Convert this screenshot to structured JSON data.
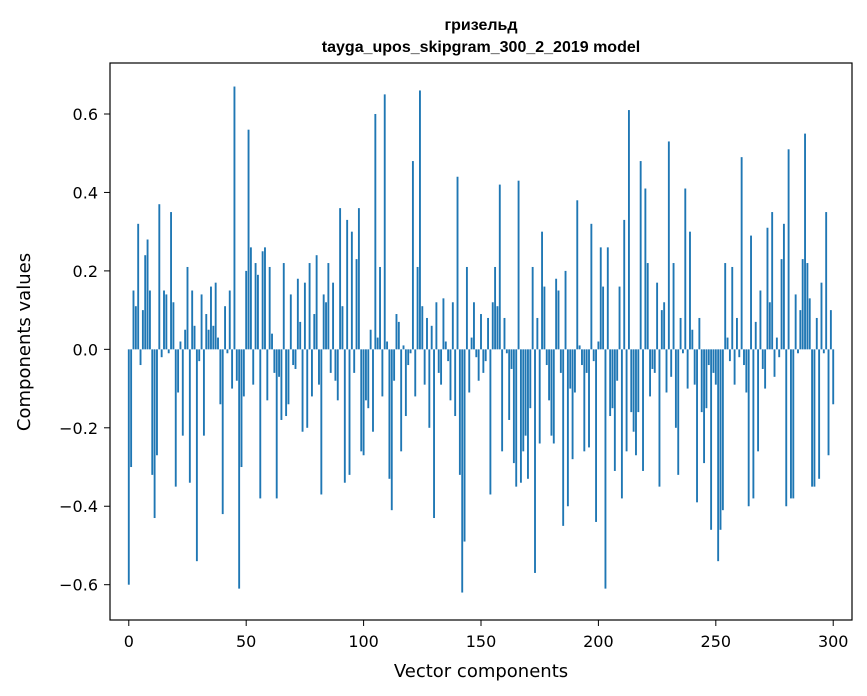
{
  "chart_data": {
    "type": "bar",
    "title": "гризельд",
    "subtitle": "tayga_upos_skipgram_300_2_2019 model",
    "xlabel": "Vector components",
    "ylabel": "Components values",
    "xlim": [
      -8,
      308
    ],
    "ylim": [
      -0.69,
      0.73
    ],
    "xticks": [
      0,
      50,
      100,
      150,
      200,
      250,
      300
    ],
    "xtick_labels": [
      "0",
      "50",
      "100",
      "150",
      "200",
      "250",
      "300"
    ],
    "yticks": [
      -0.6,
      -0.4,
      -0.2,
      0.0,
      0.2,
      0.4,
      0.6
    ],
    "ytick_labels": [
      "−0.6",
      "−0.4",
      "−0.2",
      "0.0",
      "0.2",
      "0.4",
      "0.6"
    ],
    "bar_color": "#1f77b4",
    "grid": false,
    "categories_start": 0,
    "values": [
      -0.6,
      -0.3,
      0.15,
      0.11,
      0.32,
      -0.04,
      0.1,
      0.24,
      0.28,
      0.15,
      -0.32,
      -0.43,
      -0.27,
      0.37,
      -0.02,
      0.15,
      0.14,
      -0.01,
      0.35,
      0.12,
      -0.35,
      -0.11,
      0.02,
      -0.22,
      0.05,
      0.21,
      -0.34,
      0.15,
      0.06,
      -0.54,
      -0.03,
      0.14,
      -0.22,
      0.09,
      0.05,
      0.16,
      0.06,
      0.17,
      0.03,
      -0.14,
      -0.42,
      0.11,
      -0.01,
      0.15,
      -0.1,
      0.67,
      -0.08,
      -0.61,
      -0.3,
      -0.12,
      0.2,
      0.56,
      0.26,
      -0.09,
      0.22,
      0.19,
      -0.38,
      0.25,
      0.26,
      -0.13,
      0.21,
      0.04,
      -0.06,
      -0.38,
      -0.07,
      -0.18,
      0.22,
      -0.17,
      -0.14,
      0.14,
      -0.04,
      -0.05,
      0.18,
      0.07,
      -0.21,
      0.17,
      -0.2,
      0.22,
      -0.12,
      0.09,
      0.24,
      -0.09,
      -0.37,
      0.14,
      0.12,
      0.22,
      -0.06,
      0.17,
      -0.08,
      -0.13,
      0.36,
      0.11,
      -0.34,
      0.33,
      -0.32,
      0.3,
      -0.06,
      0.23,
      0.36,
      -0.26,
      -0.27,
      -0.13,
      -0.15,
      0.05,
      -0.21,
      0.6,
      0.03,
      0.21,
      -0.12,
      0.65,
      0.02,
      -0.33,
      -0.41,
      -0.08,
      0.09,
      0.07,
      -0.26,
      0.01,
      -0.17,
      -0.04,
      -0.01,
      0.48,
      -0.12,
      0.21,
      0.66,
      0.11,
      -0.09,
      0.08,
      -0.2,
      0.06,
      -0.43,
      0.12,
      -0.06,
      -0.09,
      0.13,
      0.02,
      -0.03,
      -0.13,
      0.12,
      -0.17,
      0.44,
      -0.32,
      -0.62,
      -0.49,
      0.21,
      -0.11,
      0.03,
      0.12,
      -0.02,
      -0.08,
      0.09,
      -0.06,
      -0.03,
      0.08,
      -0.37,
      0.12,
      0.21,
      0.11,
      0.42,
      -0.26,
      0.08,
      -0.01,
      -0.18,
      -0.05,
      -0.29,
      -0.35,
      0.43,
      -0.34,
      -0.26,
      -0.22,
      -0.33,
      -0.15,
      0.21,
      -0.57,
      0.08,
      -0.24,
      0.3,
      0.16,
      -0.04,
      -0.13,
      -0.22,
      -0.24,
      0.18,
      0.15,
      -0.06,
      -0.45,
      0.2,
      -0.4,
      -0.1,
      -0.28,
      -0.11,
      0.38,
      0.01,
      -0.04,
      -0.26,
      -0.06,
      -0.25,
      0.32,
      -0.03,
      -0.44,
      0.02,
      0.26,
      0.16,
      -0.61,
      0.26,
      -0.17,
      -0.15,
      -0.31,
      -0.08,
      0.16,
      -0.38,
      0.33,
      -0.26,
      0.61,
      -0.16,
      -0.21,
      -0.27,
      -0.16,
      0.48,
      -0.31,
      0.41,
      0.22,
      -0.12,
      -0.05,
      -0.06,
      0.17,
      -0.35,
      0.1,
      0.12,
      -0.11,
      0.53,
      -0.07,
      0.22,
      -0.2,
      -0.32,
      0.08,
      -0.01,
      0.41,
      -0.1,
      0.3,
      0.05,
      -0.09,
      -0.39,
      0.08,
      -0.16,
      -0.29,
      -0.15,
      -0.04,
      -0.46,
      -0.06,
      -0.09,
      -0.54,
      -0.46,
      -0.41,
      0.22,
      0.03,
      -0.03,
      0.21,
      -0.09,
      0.08,
      -0.02,
      0.49,
      -0.04,
      -0.11,
      -0.4,
      0.29,
      -0.38,
      0.07,
      -0.26,
      0.15,
      -0.05,
      -0.1,
      0.31,
      0.12,
      0.35,
      -0.07,
      0.03,
      -0.02,
      0.23,
      0.32,
      -0.4,
      0.51,
      -0.38,
      -0.38,
      0.14,
      -0.01,
      0.1,
      0.23,
      0.55,
      0.22,
      0.13,
      -0.35,
      -0.35,
      0.08,
      -0.33,
      0.17,
      -0.01,
      0.35,
      -0.27,
      0.1,
      -0.14
    ]
  }
}
